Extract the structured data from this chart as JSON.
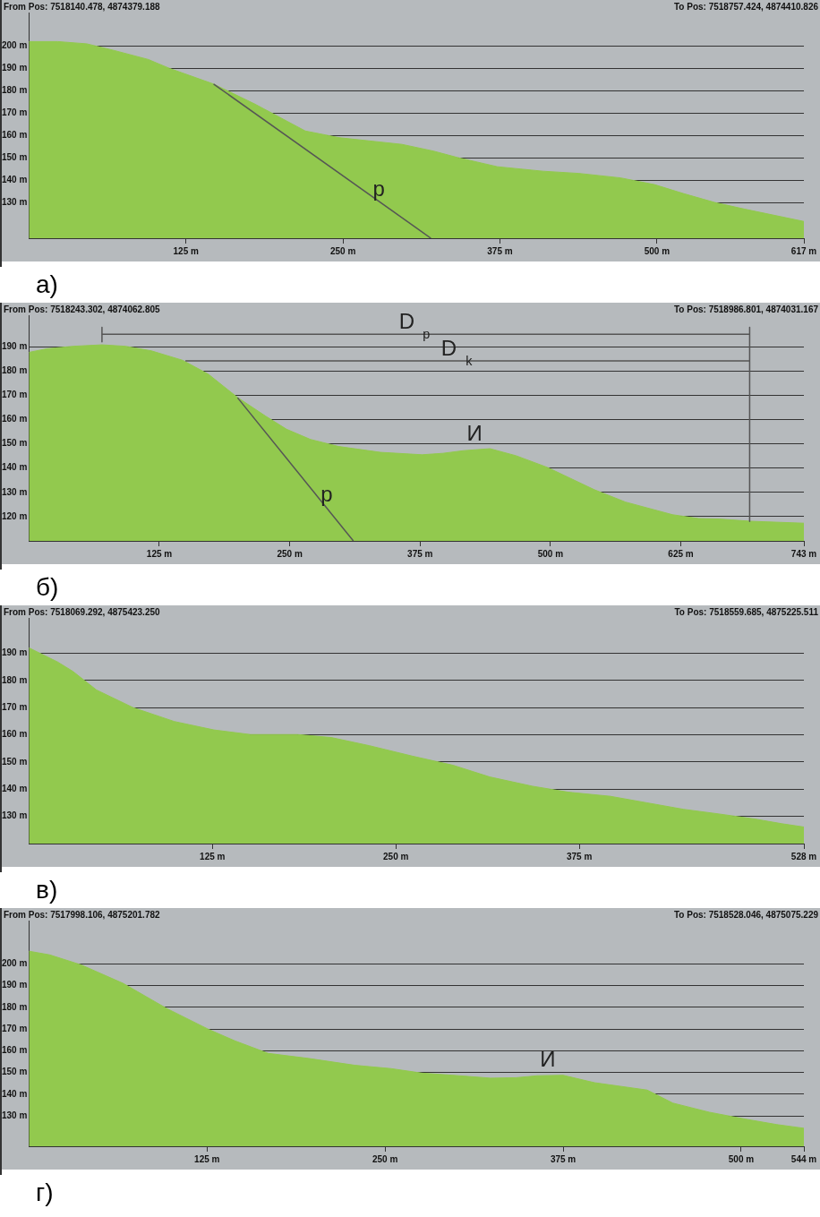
{
  "chart_data": [
    {
      "type": "area",
      "title": "From Pos: 7518140.478, 4874379.188",
      "subtitle": "To Pos: 7518757.424, 4874410.826",
      "xlim": [
        0,
        617
      ],
      "xticks": [
        {
          "value": 125,
          "label": "125 m"
        },
        {
          "value": 250,
          "label": "250 m"
        },
        {
          "value": 375,
          "label": "375 m"
        },
        {
          "value": 500,
          "label": "500 m"
        },
        {
          "value": 617,
          "label": "617 m"
        }
      ],
      "ylim": [
        114,
        215
      ],
      "yticks": [
        {
          "value": 130,
          "label": "130 m"
        },
        {
          "value": 140,
          "label": "140 m"
        },
        {
          "value": 150,
          "label": "150 m"
        },
        {
          "value": 160,
          "label": "160 m"
        },
        {
          "value": 170,
          "label": "170 m"
        },
        {
          "value": 180,
          "label": "180 m"
        },
        {
          "value": 190,
          "label": "190 m"
        },
        {
          "value": 200,
          "label": "200 m"
        }
      ],
      "grid": "y",
      "series": [
        {
          "type": "area",
          "color": "#92c94e",
          "x": [
            0,
            23,
            46,
            68,
            95,
            112,
            147,
            180,
            220,
            247,
            297,
            322,
            342,
            373,
            409,
            438,
            471,
            498,
            521,
            546,
            570,
            617
          ],
          "values": [
            202,
            202,
            201,
            198,
            194,
            190,
            183,
            174,
            162,
            159,
            156,
            153,
            150,
            146,
            144,
            143,
            141,
            138,
            134,
            130,
            127,
            121.5
          ]
        },
        {
          "type": "line",
          "name": "р",
          "color": "#555555",
          "x": [
            147,
            320
          ],
          "values": [
            183,
            114
          ]
        }
      ],
      "annotations": [
        "а)"
      ]
    },
    {
      "type": "area",
      "title": "From Pos: 7518243.302, 4874062.805",
      "subtitle": "To Pos: 7518986.801, 4874031.167",
      "xlim": [
        0,
        743
      ],
      "xticks": [
        {
          "value": 125,
          "label": "125 m"
        },
        {
          "value": 250,
          "label": "250 m"
        },
        {
          "value": 375,
          "label": "375 m"
        },
        {
          "value": 500,
          "label": "500 m"
        },
        {
          "value": 625,
          "label": "625 m"
        },
        {
          "value": 743,
          "label": "743 m"
        }
      ],
      "ylim": [
        110,
        203
      ],
      "yticks": [
        {
          "value": 120,
          "label": "120 m"
        },
        {
          "value": 130,
          "label": "130 m"
        },
        {
          "value": 140,
          "label": "140 m"
        },
        {
          "value": 150,
          "label": "150 m"
        },
        {
          "value": 160,
          "label": "160 m"
        },
        {
          "value": 170,
          "label": "170 m"
        },
        {
          "value": 180,
          "label": "180 m"
        },
        {
          "value": 190,
          "label": "190 m"
        }
      ],
      "grid": "y",
      "series": [
        {
          "type": "area",
          "color": "#92c94e",
          "x": [
            0,
            17.5,
            42.5,
            70,
            92.5,
            117.5,
            147.5,
            172,
            200,
            227,
            247,
            270,
            297,
            337,
            377,
            397,
            417,
            442,
            467,
            497,
            542,
            572,
            617,
            642,
            662,
            692,
            743
          ],
          "values": [
            187.7,
            189.2,
            190.2,
            190.8,
            190.2,
            188.3,
            184.4,
            178.7,
            169.1,
            161.4,
            156,
            151.8,
            148.9,
            146.5,
            145.5,
            146.1,
            147.2,
            148,
            145.1,
            140.3,
            131.1,
            126,
            120.8,
            119.2,
            119,
            118.1,
            117.3
          ]
        },
        {
          "type": "line",
          "name": "р",
          "color": "#555555",
          "x": [
            200,
            311
          ],
          "values": [
            169,
            110
          ]
        },
        {
          "type": "line",
          "name": "D$_{p}$",
          "color": "#555555",
          "x": [
            70,
            691
          ],
          "values": [
            195.2,
            195.2
          ]
        },
        {
          "type": "line",
          "name": "D$_{k}$",
          "color": "#555555",
          "x": [
            150,
            691
          ],
          "values": [
            184.2,
            184.2
          ]
        },
        {
          "type": "line",
          "color": "#555555",
          "x": [
            70,
            70
          ],
          "values": [
            198,
            192
          ]
        },
        {
          "type": "line",
          "color": "#555555",
          "x": [
            691,
            691
          ],
          "values": [
            198,
            118
          ]
        }
      ],
      "annotations": [
        "б)",
        {
          "text": "И",
          "x": 442,
          "y": 148
        }
      ]
    },
    {
      "type": "area",
      "title": "From Pos: 7518069.292, 4875423.250",
      "subtitle": "To Pos: 7518559.685, 4875225.511",
      "xlim": [
        0,
        528
      ],
      "xticks": [
        {
          "value": 125,
          "label": "125 m"
        },
        {
          "value": 250,
          "label": "250 m"
        },
        {
          "value": 375,
          "label": "375 m"
        },
        {
          "value": 528,
          "label": "528 m"
        }
      ],
      "ylim": [
        120,
        203
      ],
      "yticks": [
        {
          "value": 130,
          "label": "130 m"
        },
        {
          "value": 140,
          "label": "140 m"
        },
        {
          "value": 150,
          "label": "150 m"
        },
        {
          "value": 160,
          "label": "160 m"
        },
        {
          "value": 170,
          "label": "170 m"
        },
        {
          "value": 180,
          "label": "180 m"
        },
        {
          "value": 190,
          "label": "190 m"
        }
      ],
      "grid": "y",
      "series": [
        {
          "type": "area",
          "color": "#92c94e",
          "x": [
            0,
            19.5,
            30,
            46,
            71,
            99,
            126,
            151,
            183,
            206,
            232,
            261,
            289,
            314,
            343,
            367.5,
            396,
            421,
            446,
            470,
            495,
            513,
            528
          ],
          "values": [
            192,
            186.8,
            183.3,
            176.5,
            170,
            164.9,
            161.8,
            160.1,
            160.1,
            159,
            156,
            152.2,
            148.8,
            144.5,
            141.1,
            138.9,
            137.4,
            135,
            132.6,
            130.9,
            129,
            127.3,
            126.1
          ]
        }
      ],
      "annotations": [
        "в)"
      ]
    },
    {
      "type": "area",
      "title": "From Pos: 7517998.106, 4875201.782",
      "subtitle": "To Pos: 7518528.046, 4875075.229",
      "xlim": [
        0,
        544
      ],
      "xticks": [
        {
          "value": 125,
          "label": "125 m"
        },
        {
          "value": 250,
          "label": "250 m"
        },
        {
          "value": 375,
          "label": "375 m"
        },
        {
          "value": 500,
          "label": "500 m"
        },
        {
          "value": 544,
          "label": "544 m"
        }
      ],
      "ylim": [
        116,
        220
      ],
      "yticks": [
        {
          "value": 130,
          "label": "130 m"
        },
        {
          "value": 140,
          "label": "140 m"
        },
        {
          "value": 150,
          "label": "150 m"
        },
        {
          "value": 160,
          "label": "160 m"
        },
        {
          "value": 170,
          "label": "170 m"
        },
        {
          "value": 180,
          "label": "180 m"
        },
        {
          "value": 190,
          "label": "190 m"
        },
        {
          "value": 200,
          "label": "200 m"
        }
      ],
      "grid": "y",
      "series": [
        {
          "type": "area",
          "color": "#92c94e",
          "x": [
            0,
            14.6,
            36.6,
            66,
            97,
            126,
            144.5,
            168,
            196,
            229,
            254,
            276,
            302,
            324,
            342,
            357,
            375,
            397,
            434,
            452,
            477.5,
            503,
            525,
            544
          ],
          "values": [
            205.9,
            204.2,
            199.6,
            191.1,
            179.4,
            169.9,
            164.6,
            158.8,
            156.5,
            153.3,
            151.8,
            149.7,
            148.5,
            147.4,
            147.6,
            148.5,
            148.7,
            145.3,
            141.9,
            135.9,
            131.7,
            128.5,
            126,
            124.3
          ]
        }
      ],
      "annotations": [
        "г)",
        {
          "text": "И",
          "x": 375,
          "y": 148.7
        }
      ]
    }
  ]
}
